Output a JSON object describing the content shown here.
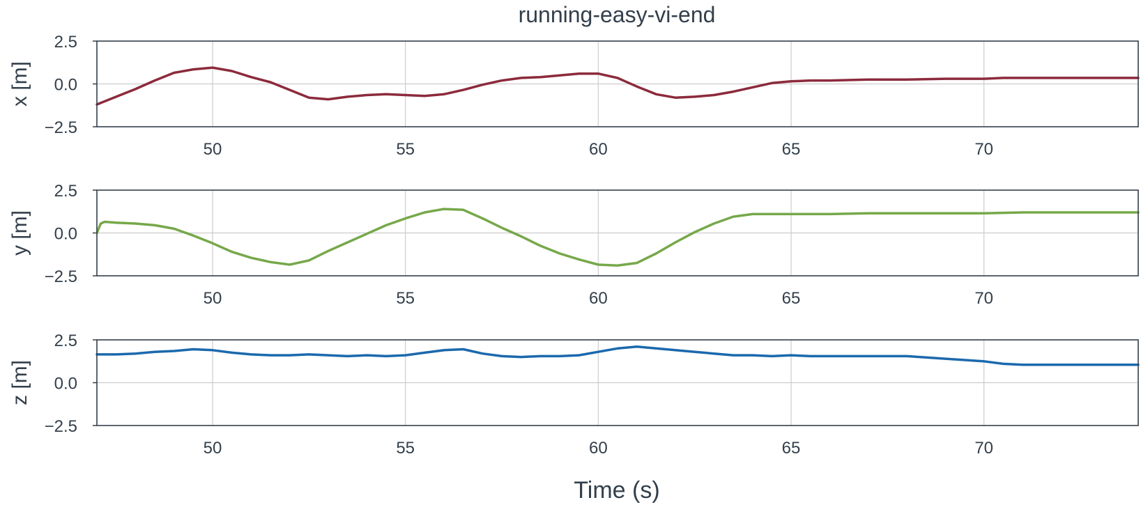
{
  "chart_data": {
    "type": "line",
    "title": "running-easy-vi-end",
    "xlabel": "Time (s)",
    "xlim": [
      47,
      74
    ],
    "xticks": [
      "50",
      "55",
      "60",
      "65",
      "70"
    ],
    "xtick_values": [
      50,
      55,
      60,
      65,
      70
    ],
    "grid": true,
    "panels": [
      {
        "ylabel": "x [m]",
        "ylim": [
          -2.5,
          2.5
        ],
        "yticks": [
          "2.5",
          "0.0",
          "−2.5"
        ],
        "ytick_values": [
          2.5,
          0,
          -2.5
        ],
        "color": "#8c2a3c",
        "series": [
          {
            "x": [
              47.0,
              47.5,
              48.0,
              48.5,
              49.0,
              49.5,
              50.0,
              50.5,
              51.0,
              51.5,
              52.0,
              52.5,
              53.0,
              53.5,
              54.0,
              54.5,
              55.0,
              55.5,
              56.0,
              56.5,
              57.0,
              57.5,
              58.0,
              58.5,
              59.0,
              59.5,
              60.0,
              60.5,
              61.0,
              61.5,
              62.0,
              62.5,
              63.0,
              63.5,
              64.0,
              64.5,
              65.0,
              65.5,
              66.0,
              67.0,
              68.0,
              69.0,
              70.0,
              70.5,
              71.0,
              72.0,
              73.0,
              74.0
            ],
            "y": [
              -1.2,
              -0.75,
              -0.3,
              0.2,
              0.65,
              0.85,
              0.95,
              0.75,
              0.4,
              0.1,
              -0.35,
              -0.8,
              -0.9,
              -0.75,
              -0.65,
              -0.6,
              -0.65,
              -0.7,
              -0.6,
              -0.35,
              -0.05,
              0.2,
              0.35,
              0.4,
              0.5,
              0.6,
              0.6,
              0.35,
              -0.15,
              -0.6,
              -0.8,
              -0.75,
              -0.65,
              -0.45,
              -0.2,
              0.05,
              0.15,
              0.2,
              0.2,
              0.25,
              0.25,
              0.3,
              0.3,
              0.35,
              0.35,
              0.35,
              0.35,
              0.35
            ]
          }
        ]
      },
      {
        "ylabel": "y [m]",
        "ylim": [
          -2.5,
          2.5
        ],
        "yticks": [
          "2.5",
          "0.0",
          "−2.5"
        ],
        "ytick_values": [
          2.5,
          0,
          -2.5
        ],
        "color": "#76a84a",
        "series": [
          {
            "x": [
              47.0,
              47.1,
              47.2,
              47.5,
              48.0,
              48.5,
              49.0,
              49.5,
              50.0,
              50.5,
              51.0,
              51.5,
              52.0,
              52.5,
              53.0,
              53.5,
              54.0,
              54.5,
              55.0,
              55.5,
              56.0,
              56.5,
              57.0,
              57.5,
              58.0,
              58.5,
              59.0,
              59.5,
              60.0,
              60.5,
              61.0,
              61.5,
              62.0,
              62.5,
              63.0,
              63.5,
              64.0,
              64.5,
              65.0,
              65.5,
              66.0,
              67.0,
              68.0,
              69.0,
              70.0,
              71.0,
              72.0,
              73.0,
              74.0
            ],
            "y": [
              0.0,
              0.55,
              0.65,
              0.6,
              0.55,
              0.45,
              0.25,
              -0.15,
              -0.6,
              -1.1,
              -1.45,
              -1.7,
              -1.85,
              -1.6,
              -1.05,
              -0.55,
              -0.05,
              0.45,
              0.85,
              1.2,
              1.4,
              1.35,
              0.85,
              0.3,
              -0.2,
              -0.75,
              -1.2,
              -1.55,
              -1.85,
              -1.9,
              -1.75,
              -1.2,
              -0.55,
              0.05,
              0.55,
              0.95,
              1.1,
              1.1,
              1.1,
              1.1,
              1.1,
              1.15,
              1.15,
              1.15,
              1.15,
              1.2,
              1.2,
              1.2,
              1.2
            ]
          }
        ]
      },
      {
        "ylabel": "z [m]",
        "ylim": [
          -2.5,
          2.5
        ],
        "yticks": [
          "2.5",
          "0.0",
          "−2.5"
        ],
        "ytick_values": [
          2.5,
          0,
          -2.5
        ],
        "color": "#1b69ad",
        "series": [
          {
            "x": [
              47.0,
              47.5,
              48.0,
              48.5,
              49.0,
              49.5,
              50.0,
              50.5,
              51.0,
              51.5,
              52.0,
              52.5,
              53.0,
              53.5,
              54.0,
              54.5,
              55.0,
              55.5,
              56.0,
              56.5,
              57.0,
              57.5,
              58.0,
              58.5,
              59.0,
              59.5,
              60.0,
              60.5,
              61.0,
              61.5,
              62.0,
              62.5,
              63.0,
              63.5,
              64.0,
              64.5,
              65.0,
              65.5,
              66.0,
              67.0,
              68.0,
              69.0,
              70.0,
              70.5,
              71.0,
              72.0,
              73.0,
              74.0
            ],
            "y": [
              1.65,
              1.65,
              1.7,
              1.8,
              1.85,
              1.95,
              1.9,
              1.75,
              1.65,
              1.6,
              1.6,
              1.65,
              1.6,
              1.55,
              1.6,
              1.55,
              1.6,
              1.75,
              1.9,
              1.95,
              1.7,
              1.55,
              1.5,
              1.55,
              1.55,
              1.6,
              1.8,
              2.0,
              2.1,
              2.0,
              1.9,
              1.8,
              1.7,
              1.6,
              1.6,
              1.55,
              1.6,
              1.55,
              1.55,
              1.55,
              1.55,
              1.4,
              1.25,
              1.1,
              1.05,
              1.05,
              1.05,
              1.05
            ]
          }
        ]
      }
    ]
  }
}
